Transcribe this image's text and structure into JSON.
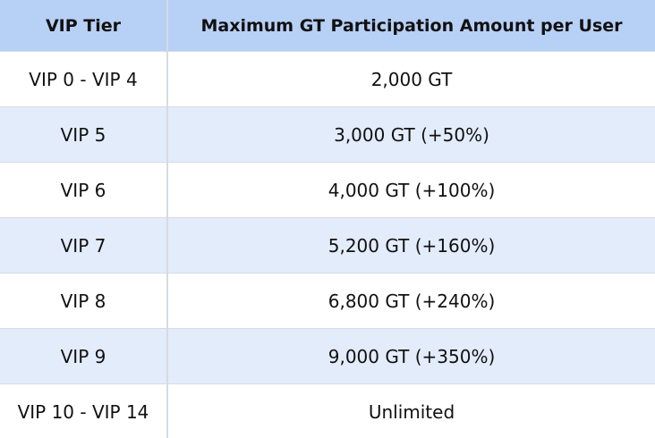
{
  "table": {
    "header": [
      "VIP Tier",
      "Maximum GT Participation Amount per User"
    ],
    "rows": [
      [
        "VIP 0 - VIP 4",
        "2,000 GT"
      ],
      [
        "VIP 5",
        "3,000 GT (+50%)"
      ],
      [
        "VIP 6",
        "4,000 GT (+100%)"
      ],
      [
        "VIP 7",
        "5,200 GT (+160%)"
      ],
      [
        "VIP 8",
        "6,800 GT (+240%)"
      ],
      [
        "VIP 9",
        "9,000 GT (+350%)"
      ],
      [
        "VIP 10 - VIP 14",
        "Unlimited"
      ]
    ]
  }
}
